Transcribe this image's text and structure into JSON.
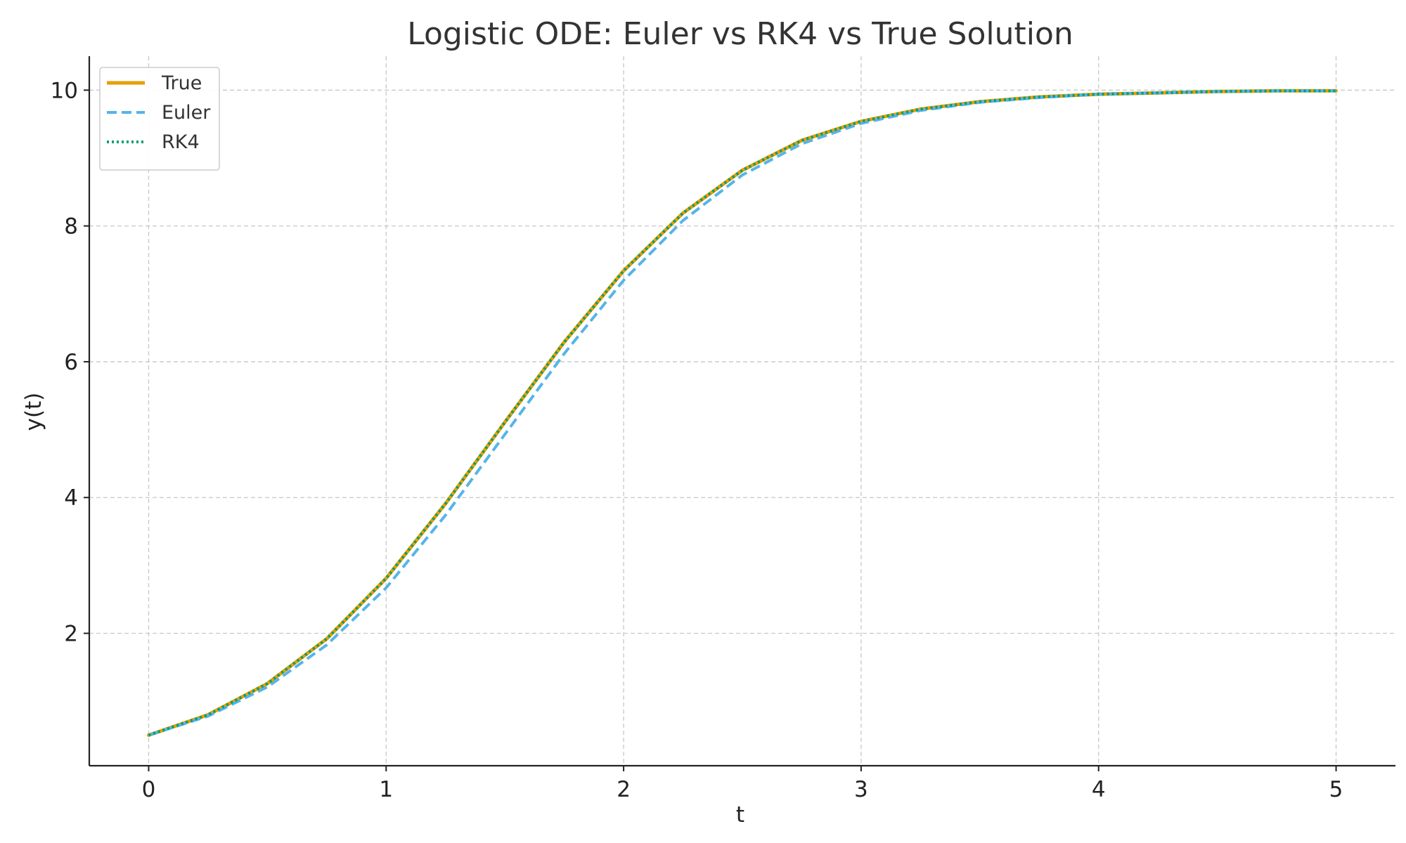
{
  "chart_data": {
    "type": "line",
    "title": "Logistic ODE: Euler vs RK4 vs True Solution",
    "xlabel": "t",
    "ylabel": "y(t)",
    "xlim": [
      -0.25,
      5.25
    ],
    "ylim": [
      0.05,
      10.5
    ],
    "xticks": [
      0,
      1,
      2,
      3,
      4,
      5
    ],
    "yticks": [
      2,
      4,
      6,
      8,
      10
    ],
    "grid": true,
    "legend_position": "top-left",
    "series": [
      {
        "name": "True",
        "color": "#E69F00",
        "style": "solid",
        "x": [
          0,
          0.25,
          0.5,
          0.75,
          1.0,
          1.25,
          1.5,
          1.75,
          2.0,
          2.25,
          2.5,
          2.75,
          3.0,
          3.25,
          3.5,
          3.75,
          4.0,
          4.25,
          4.5,
          4.75,
          5.0
        ],
        "y": [
          0.5,
          0.8,
          1.26,
          1.92,
          2.81,
          3.91,
          5.11,
          6.29,
          7.34,
          8.19,
          8.82,
          9.26,
          9.54,
          9.72,
          9.83,
          9.9,
          9.94,
          9.96,
          9.98,
          9.99,
          9.99
        ]
      },
      {
        "name": "Euler",
        "color": "#56B4E9",
        "style": "dashed",
        "x": [
          0,
          0.25,
          0.5,
          0.75,
          1.0,
          1.25,
          1.5,
          1.75,
          2.0,
          2.25,
          2.5,
          2.75,
          3.0,
          3.25,
          3.5,
          3.75,
          4.0,
          4.25,
          4.5,
          4.75,
          5.0
        ],
        "y": [
          0.5,
          0.78,
          1.21,
          1.83,
          2.67,
          3.74,
          4.93,
          6.12,
          7.2,
          8.08,
          8.75,
          9.21,
          9.51,
          9.7,
          9.82,
          9.89,
          9.94,
          9.96,
          9.98,
          9.99,
          9.99
        ]
      },
      {
        "name": "RK4",
        "color": "#009E73",
        "style": "dotted",
        "x": [
          0,
          0.25,
          0.5,
          0.75,
          1.0,
          1.25,
          1.5,
          1.75,
          2.0,
          2.25,
          2.5,
          2.75,
          3.0,
          3.25,
          3.5,
          3.75,
          4.0,
          4.25,
          4.5,
          4.75,
          5.0
        ],
        "y": [
          0.5,
          0.8,
          1.26,
          1.92,
          2.81,
          3.91,
          5.11,
          6.29,
          7.34,
          8.19,
          8.82,
          9.26,
          9.54,
          9.72,
          9.83,
          9.9,
          9.94,
          9.96,
          9.98,
          9.99,
          9.99
        ]
      }
    ]
  }
}
